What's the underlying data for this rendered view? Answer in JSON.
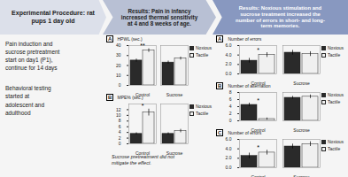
{
  "chart_data": [
    {
      "type": "text",
      "title": "Experimental Procedure: rat\npups 1 day old",
      "annotations": [
        {
          "text": "Pain induction and\nsucrose pretreatment\nstart on day1 (P1),\ncontinue for 14 days"
        },
        {
          "text": "Behavioral testing\nstarted at\nadolescent and\nadulthood"
        }
      ]
    },
    {
      "type": "bar",
      "subtitle": "Results: Pain in infancy\nincreased thermal sensitivity\nat 4 and 8 weeks of age.",
      "title": "A",
      "ylabel": "HPWL (sec.)",
      "categories": [
        "Control",
        "Sucrose"
      ],
      "series": [
        {
          "name": "Noxious",
          "color": "#2a2a2a",
          "values": [
            25.0,
            23.0
          ],
          "errors": [
            1.5,
            1.5
          ]
        },
        {
          "name": "Tactile",
          "color": "#f0f0f0",
          "values": [
            35.0,
            27.0
          ],
          "errors": [
            1.8,
            1.5
          ]
        }
      ],
      "ylim": [
        0,
        40
      ],
      "yticks": [
        0,
        10,
        20,
        30,
        40
      ],
      "grid": false,
      "legend": "upper right",
      "annotations": [
        {
          "text": "**",
          "category": "Control"
        }
      ]
    },
    {
      "type": "bar",
      "title": "B",
      "ylabel": "MPE% (sec.)",
      "categories": [
        "Control",
        "Sucrose"
      ],
      "series": [
        {
          "name": "Noxious",
          "color": "#2a2a2a",
          "values": [
            3.5,
            3.5
          ],
          "errors": [
            0.4,
            0.4
          ]
        },
        {
          "name": "Tactile",
          "color": "#f0f0f0",
          "values": [
            11.0,
            4.5
          ],
          "errors": [
            1.2,
            0.6
          ]
        }
      ],
      "ylim": [
        0,
        14
      ],
      "yticks": [
        0,
        2,
        4,
        6,
        8,
        10,
        12
      ],
      "grid": false,
      "legend": "upper right",
      "annotations": [
        {
          "text": "*",
          "category": "Control"
        },
        {
          "text": "Sucrose pretreatment did not\nmitigate the effect."
        }
      ]
    },
    {
      "type": "bar",
      "subtitle": "Results: Noxious stimulation and\nsucrose treatment increased the\nnumber of errors in short- and long-\nterm memories.",
      "title": "A",
      "ylabel": "Number of errors",
      "categories": [
        "Control",
        "Sucrose"
      ],
      "series": [
        {
          "name": "Noxious",
          "color": "#2a2a2a",
          "values": [
            2.8,
            4.5
          ],
          "errors": [
            0.5,
            0.5
          ]
        },
        {
          "name": "Tactile",
          "color": "#f0f0f0",
          "values": [
            4.0,
            4.2
          ],
          "errors": [
            0.5,
            0.5
          ]
        }
      ],
      "ylim": [
        0,
        6
      ],
      "yticks": [
        0,
        2,
        4,
        6
      ],
      "grid": false,
      "legend": "upper right",
      "annotations": [
        {
          "text": "*",
          "category": "Control"
        }
      ]
    },
    {
      "type": "bar",
      "title": "B",
      "ylabel": "Number of alternation",
      "categories": [
        "Control",
        "Sucrose"
      ],
      "series": [
        {
          "name": "Noxious",
          "color": "#2a2a2a",
          "values": [
            4.5,
            6.5
          ],
          "errors": [
            0.5,
            0.4
          ]
        },
        {
          "name": "Tactile",
          "color": "#f0f0f0",
          "values": [
            0.5,
            6.8
          ],
          "errors": [
            0.3,
            0.5
          ]
        }
      ],
      "ylim": [
        0,
        8
      ],
      "yticks": [
        0,
        2,
        4,
        6,
        8
      ],
      "grid": false,
      "legend": "upper right",
      "annotations": [
        {
          "text": "*",
          "category": "Control"
        }
      ]
    },
    {
      "type": "bar",
      "title": "C",
      "ylabel": "Number of errors",
      "categories": [
        "Control",
        "Sucrose"
      ],
      "series": [
        {
          "name": "Noxious",
          "color": "#2a2a2a",
          "values": [
            2.5,
            4.5
          ],
          "errors": [
            0.6,
            0.5
          ]
        },
        {
          "name": "Tactile",
          "color": "#f0f0f0",
          "values": [
            3.2,
            5.0
          ],
          "errors": [
            0.5,
            0.5
          ]
        }
      ],
      "ylim": [
        0,
        6
      ],
      "yticks": [
        0,
        2,
        4,
        6
      ],
      "grid": false,
      "legend": "upper right",
      "annotations": [
        {
          "text": "*",
          "category": "Control"
        }
      ]
    }
  ]
}
